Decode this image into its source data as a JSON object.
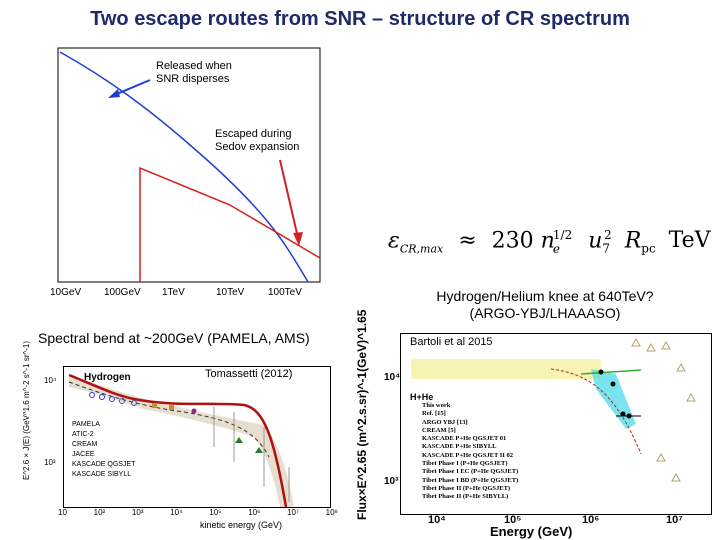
{
  "slide": {
    "title": "Two escape routes from SNR – structure of CR spectrum"
  },
  "top_chart": {
    "label_released": [
      "Released when",
      "SNR disperses"
    ],
    "label_escaped": [
      "Escaped during",
      "Sedov expansion"
    ],
    "x_ticks": [
      "10GeV",
      "100GeV",
      "1TeV",
      "10TeV",
      "100TeV"
    ],
    "colors": {
      "released": "#1f3fd0",
      "escaped": "#d42020",
      "arrow_blue": "#1f3fd0",
      "arrow_red": "#d42020"
    }
  },
  "formula": {
    "lhs_symbol": "ε",
    "lhs_subscript": "CR,max",
    "approx": "≈",
    "coef": "230",
    "rhs": "n",
    "sub_e": "e",
    "sup_half": "1/2",
    "u": "u",
    "sub_7": "7",
    "sup_2": "2",
    "R": "R",
    "sub_pc": "pc",
    "unit": "TeV"
  },
  "bottom_left": {
    "heading": "Spectral bend at ~200GeV (PAMELA, AMS)",
    "citation": "Tomassetti (2012)",
    "series_label": "Hydrogen",
    "y_axis_label": "E^2.6 × J(E) (GeV^1.6 m^-2 s^-1 sr^-1)",
    "x_axis_label": "kinetic energy (GeV)",
    "x_ticks": [
      "10",
      "10²",
      "10³",
      "10⁴",
      "10⁵",
      "10⁶",
      "10⁷",
      "10⁸"
    ],
    "y_ticks": [
      "10⁴",
      "10³"
    ],
    "legend": [
      "PAMELA",
      "ATIC-2",
      "CREAM",
      "JACEE",
      "KASCADE QGSJET",
      "KASCADE SIBYLL"
    ]
  },
  "bottom_right": {
    "heading_line1": "Hydrogen/Helium knee at 640TeV?",
    "heading_line2": "(ARGO-YBJ/LHAAASO)",
    "citation": "Bartoli et al 2015",
    "y_axis_label": "Flux×E^2.65 (m^2.s.sr)^-1(GeV)^1.65",
    "x_axis_label": "Energy (GeV)",
    "x_ticks": [
      "10⁴",
      "10⁵",
      "10⁶",
      "10⁷"
    ],
    "y_ticks": [
      "10⁴",
      "10³"
    ],
    "legend_title": "H+He",
    "legend": [
      "This work",
      "Ref. [15]",
      "ARGO YBJ [13]",
      "CREAM [5]",
      "KASCADE P+He QGSJET 01",
      "KASCADE P+He SIBYLL",
      "KASCADE P+He QGSJET II 02",
      "Tibet Phase I (P+He QGSJET)",
      "Tibet Phase I EC (P+He QGSJET)",
      "Tibet Phase I BD (P+He QGSJET)",
      "Tibet Phase II (P+He QGSJET)",
      "Tibet Phase II (P+He SIBYLL)"
    ]
  }
}
